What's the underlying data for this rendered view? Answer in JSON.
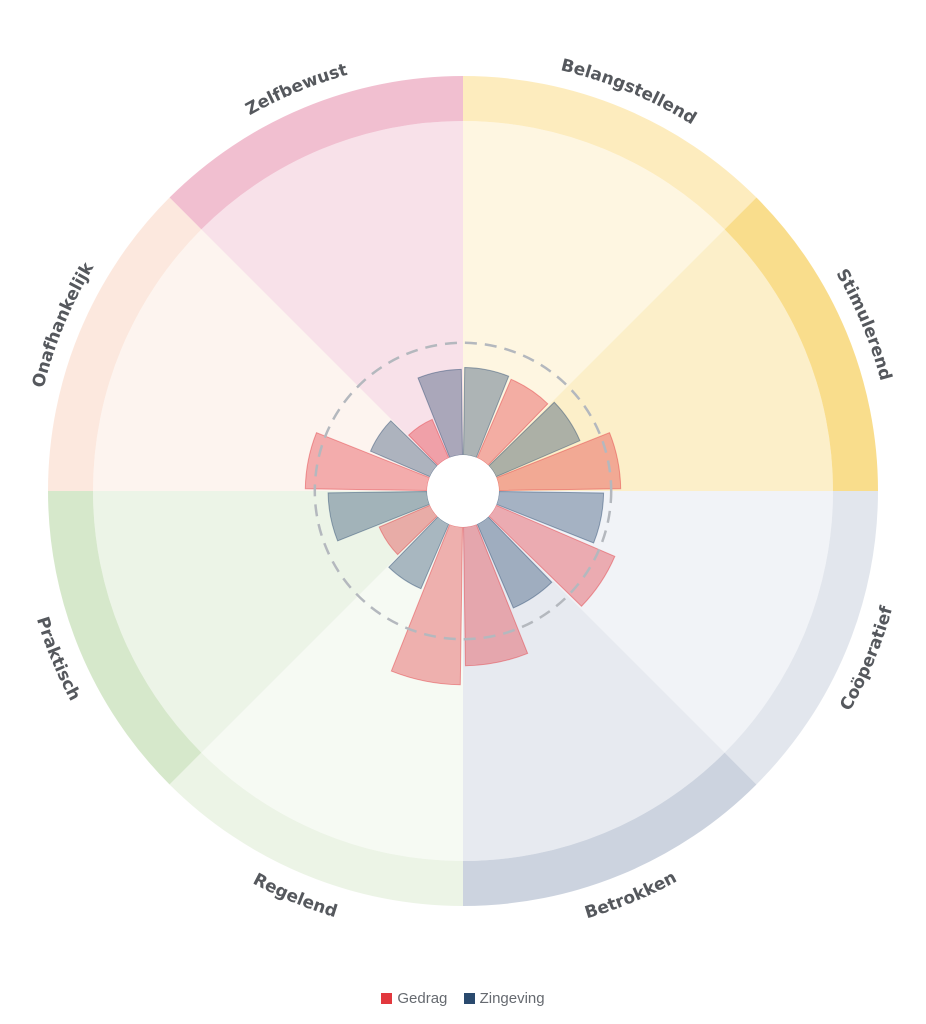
{
  "chart_data": {
    "type": "polar-bar",
    "segments": [
      {
        "label": "Belangstellend",
        "color": "#fde9b3"
      },
      {
        "label": "Stimulerend",
        "color": "#f8d778"
      },
      {
        "label": "Coöperatief",
        "color": "#dde2ea"
      },
      {
        "label": "Betrokken",
        "color": "#c3cbd9"
      },
      {
        "label": "Regelend",
        "color": "#e9f2e2"
      },
      {
        "label": "Praktisch",
        "color": "#cfe4c2"
      },
      {
        "label": "Onafhankelijk",
        "color": "#fbe4d8"
      },
      {
        "label": "Zelfbewust",
        "color": "#eeb4c8"
      }
    ],
    "series": [
      {
        "name": "Gedrag",
        "color": "#e2383e"
      },
      {
        "name": "Zingeving",
        "color": "#2a4a6e"
      }
    ],
    "bars": [
      {
        "series": "Zingeving",
        "value": 0.65
      },
      {
        "series": "Gedrag",
        "value": 0.64
      },
      {
        "series": "Zingeving",
        "value": 0.67
      },
      {
        "series": "Gedrag",
        "value": 0.83
      },
      {
        "series": "Zingeving",
        "value": 0.74
      },
      {
        "series": "Gedrag",
        "value": 0.87
      },
      {
        "series": "Zingeving",
        "value": 0.67
      },
      {
        "series": "Gedrag",
        "value": 0.92
      },
      {
        "series": "Gedrag",
        "value": 1.02
      },
      {
        "series": "Zingeving",
        "value": 0.56
      },
      {
        "series": "Gedrag",
        "value": 0.48
      },
      {
        "series": "Zingeving",
        "value": 0.71
      },
      {
        "series": "Gedrag",
        "value": 0.83
      },
      {
        "series": "Zingeving",
        "value": 0.53
      },
      {
        "series": "Gedrag",
        "value": 0.41
      },
      {
        "series": "Zingeving",
        "value": 0.64
      }
    ],
    "reference_value": 0.78,
    "legend_position": "bottom-center"
  }
}
